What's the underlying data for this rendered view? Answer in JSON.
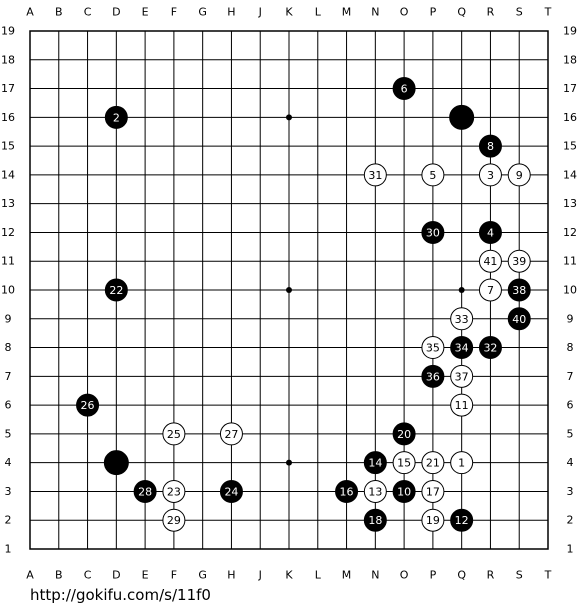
{
  "board": {
    "columns": [
      "A",
      "B",
      "C",
      "D",
      "E",
      "F",
      "G",
      "H",
      "J",
      "K",
      "L",
      "M",
      "N",
      "O",
      "P",
      "Q",
      "R",
      "S",
      "T"
    ],
    "rows": [
      19,
      18,
      17,
      16,
      15,
      14,
      13,
      12,
      11,
      10,
      9,
      8,
      7,
      6,
      5,
      4,
      3,
      2,
      1
    ],
    "stones": [
      {
        "color": "black",
        "col": "Q",
        "row": 16
      },
      {
        "color": "black",
        "col": "D",
        "row": 4
      },
      {
        "color": "black",
        "col": "D",
        "row": 16,
        "number": 2
      },
      {
        "color": "black",
        "col": "R",
        "row": 12,
        "number": 4
      },
      {
        "color": "black",
        "col": "O",
        "row": 17,
        "number": 6
      },
      {
        "color": "black",
        "col": "R",
        "row": 15,
        "number": 8
      },
      {
        "color": "black",
        "col": "O",
        "row": 3,
        "number": 10
      },
      {
        "color": "black",
        "col": "Q",
        "row": 2,
        "number": 12
      },
      {
        "color": "black",
        "col": "N",
        "row": 4,
        "number": 14
      },
      {
        "color": "black",
        "col": "M",
        "row": 3,
        "number": 16
      },
      {
        "color": "black",
        "col": "N",
        "row": 2,
        "number": 18
      },
      {
        "color": "black",
        "col": "O",
        "row": 5,
        "number": 20
      },
      {
        "color": "black",
        "col": "D",
        "row": 10,
        "number": 22
      },
      {
        "color": "black",
        "col": "H",
        "row": 3,
        "number": 24
      },
      {
        "color": "black",
        "col": "C",
        "row": 6,
        "number": 26
      },
      {
        "color": "black",
        "col": "E",
        "row": 3,
        "number": 28
      },
      {
        "color": "black",
        "col": "P",
        "row": 12,
        "number": 30
      },
      {
        "color": "black",
        "col": "R",
        "row": 8,
        "number": 32
      },
      {
        "color": "black",
        "col": "Q",
        "row": 8,
        "number": 34
      },
      {
        "color": "black",
        "col": "P",
        "row": 7,
        "number": 36
      },
      {
        "color": "black",
        "col": "S",
        "row": 10,
        "number": 38
      },
      {
        "color": "black",
        "col": "S",
        "row": 9,
        "number": 40
      },
      {
        "color": "white",
        "col": "Q",
        "row": 4,
        "number": 1
      },
      {
        "color": "white",
        "col": "R",
        "row": 14,
        "number": 3
      },
      {
        "color": "white",
        "col": "P",
        "row": 14,
        "number": 5
      },
      {
        "color": "white",
        "col": "R",
        "row": 10,
        "number": 7
      },
      {
        "color": "white",
        "col": "S",
        "row": 14,
        "number": 9
      },
      {
        "color": "white",
        "col": "Q",
        "row": 6,
        "number": 11
      },
      {
        "color": "white",
        "col": "N",
        "row": 3,
        "number": 13
      },
      {
        "color": "white",
        "col": "O",
        "row": 4,
        "number": 15
      },
      {
        "color": "white",
        "col": "P",
        "row": 3,
        "number": 17
      },
      {
        "color": "white",
        "col": "P",
        "row": 2,
        "number": 19
      },
      {
        "color": "white",
        "col": "P",
        "row": 4,
        "number": 21
      },
      {
        "color": "white",
        "col": "F",
        "row": 3,
        "number": 23
      },
      {
        "color": "white",
        "col": "F",
        "row": 5,
        "number": 25
      },
      {
        "color": "white",
        "col": "H",
        "row": 5,
        "number": 27
      },
      {
        "color": "white",
        "col": "F",
        "row": 2,
        "number": 29
      },
      {
        "color": "white",
        "col": "N",
        "row": 14,
        "number": 31
      },
      {
        "color": "white",
        "col": "Q",
        "row": 9,
        "number": 33
      },
      {
        "color": "white",
        "col": "P",
        "row": 8,
        "number": 35
      },
      {
        "color": "white",
        "col": "Q",
        "row": 7,
        "number": 37
      },
      {
        "color": "white",
        "col": "S",
        "row": 11,
        "number": 39
      },
      {
        "color": "white",
        "col": "R",
        "row": 11,
        "number": 41
      }
    ]
  },
  "footer": {
    "url": "http://gokifu.com/s/11f0"
  }
}
